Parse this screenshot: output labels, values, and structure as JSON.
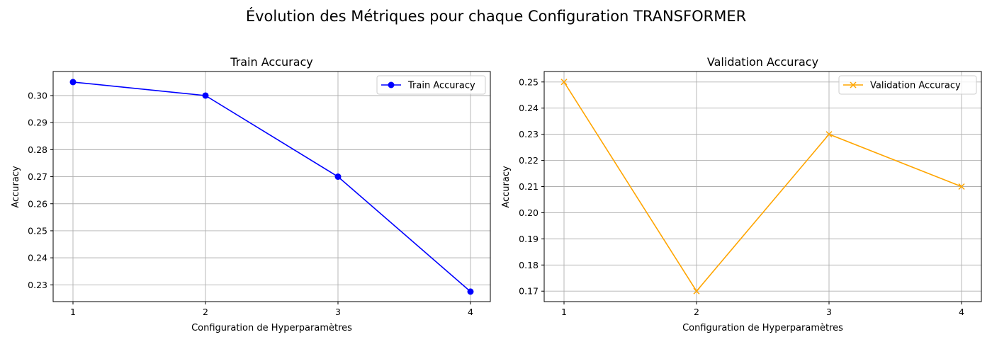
{
  "figure": {
    "title": "Évolution des Métriques pour chaque Configuration TRANSFORMER"
  },
  "chart_data": [
    {
      "type": "line",
      "title": "Train Accuracy",
      "xlabel": "Configuration de Hyperparamètres",
      "ylabel": "Accuracy",
      "x": [
        1,
        2,
        3,
        4
      ],
      "xticks": [
        "1",
        "2",
        "3",
        "4"
      ],
      "yticks": [
        "0.23",
        "0.24",
        "0.25",
        "0.26",
        "0.27",
        "0.28",
        "0.29",
        "0.30"
      ],
      "ylim": [
        0.2238,
        0.3089
      ],
      "grid": true,
      "legend_position": "upper-right",
      "series": [
        {
          "name": "Train Accuracy",
          "values": [
            0.305,
            0.3,
            0.27,
            0.2275
          ],
          "color": "#0000ff",
          "marker": "circle"
        }
      ]
    },
    {
      "type": "line",
      "title": "Validation Accuracy",
      "xlabel": "Configuration de Hyperparamètres",
      "ylabel": "Accuracy",
      "x": [
        1,
        2,
        3,
        4
      ],
      "xticks": [
        "1",
        "2",
        "3",
        "4"
      ],
      "yticks": [
        "0.17",
        "0.18",
        "0.19",
        "0.20",
        "0.21",
        "0.22",
        "0.23",
        "0.24",
        "0.25"
      ],
      "ylim": [
        0.166,
        0.254
      ],
      "grid": true,
      "legend_position": "upper-right",
      "series": [
        {
          "name": "Validation Accuracy",
          "values": [
            0.25,
            0.17,
            0.23,
            0.21
          ],
          "color": "#ffa500",
          "marker": "x"
        }
      ]
    }
  ]
}
